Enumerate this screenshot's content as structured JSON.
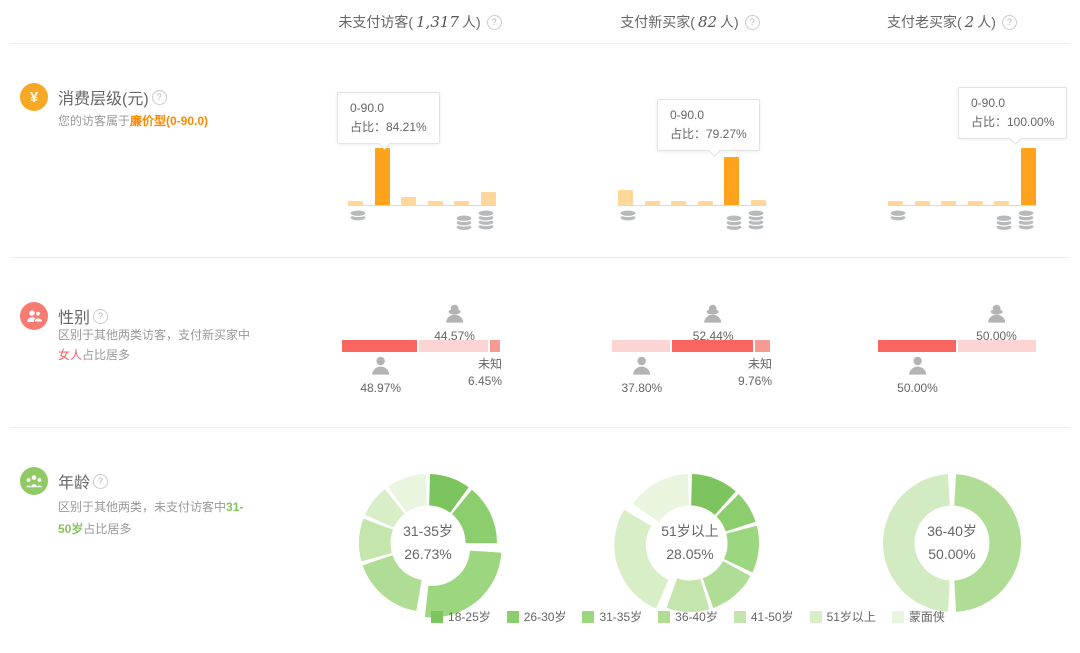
{
  "header": {
    "columns": [
      {
        "prefix": "未支付访客(",
        "count": "1,317",
        "suffix": "人)"
      },
      {
        "prefix": "支付新买家(",
        "count": "82",
        "suffix": "人)"
      },
      {
        "prefix": "支付老买家(",
        "count": "2",
        "suffix": "人)"
      }
    ]
  },
  "sections": {
    "consumption": {
      "title": "消费层级(元)",
      "desc_prefix": "您的访客属于",
      "desc_highlight": "廉价型(0-90.0)",
      "accent_color": "#ff8800",
      "icon_bg": "#f7a824"
    },
    "gender": {
      "title": "性别",
      "desc_line1": "区别于其他两类访客，支付新买家中",
      "desc_highlight": "女人",
      "desc_suffix": "占比居多",
      "accent_color": "#f7605c",
      "icon_bg": "#f87b72",
      "colors": {
        "dominant": "#fa655f",
        "secondary": "#fbd4d3",
        "unknown": "#f79a94"
      }
    },
    "age": {
      "title": "年龄",
      "desc_prefix": "区别于其他两类，未支付访客中",
      "desc_highlight_1": "31-",
      "desc_highlight_2": "50岁",
      "desc_suffix": "占比居多",
      "accent_color": "#85c35b",
      "icon_bg": "#90ca64"
    }
  },
  "legend": [
    {
      "label": "18-25岁",
      "color": "#7cc45e"
    },
    {
      "label": "26-30岁",
      "color": "#8cce6d"
    },
    {
      "label": "31-35岁",
      "color": "#9cd67f"
    },
    {
      "label": "36-40岁",
      "color": "#b0dd95"
    },
    {
      "label": "41-50岁",
      "color": "#c4e5ac"
    },
    {
      "label": "51岁以上",
      "color": "#d8eec6"
    },
    {
      "label": "蒙面侠",
      "color": "#e9f5de"
    }
  ],
  "chart_data": [
    {
      "type": "bar",
      "group": "消费层级(元)",
      "column": "未支付访客",
      "tooltip_line1": "0-90.0",
      "tooltip_line2": "占比：84.21%",
      "dominant_bucket": "0-90.0",
      "dominant_share_pct": 84.21,
      "highlight_index": 1,
      "values_rel": [
        0.07,
        1.0,
        0.14,
        0.07,
        0.07,
        0.23
      ],
      "highlight_color": "#ffa21c",
      "bar_color": "#ffd79b"
    },
    {
      "type": "bar",
      "group": "消费层级(元)",
      "column": "支付新买家",
      "tooltip_line1": "0-90.0",
      "tooltip_line2": "占比：79.27%",
      "dominant_bucket": "0-90.0",
      "dominant_share_pct": 79.27,
      "highlight_index": 4,
      "values_rel": [
        0.31,
        0.08,
        0.08,
        0.08,
        1.0,
        0.1
      ],
      "highlight_color": "#ffa21c",
      "bar_color": "#ffd79b"
    },
    {
      "type": "bar",
      "group": "消费层级(元)",
      "column": "支付老买家",
      "tooltip_line1": "0-90.0",
      "tooltip_line2": "占比：100.00%",
      "dominant_bucket": "0-90.0",
      "dominant_share_pct": 100.0,
      "highlight_index": 5,
      "values_rel": [
        0.07,
        0.07,
        0.07,
        0.07,
        0.07,
        1.0
      ],
      "highlight_color": "#ffa21c",
      "bar_color": "#ffd79b"
    },
    {
      "type": "stacked-bar",
      "group": "性别",
      "column": "未支付访客",
      "male_pct": 48.97,
      "female_pct": 44.57,
      "unknown_pct": 6.45,
      "male_label": "48.97%",
      "female_label": "44.57%",
      "unknown_title": "未知",
      "unknown_label": "6.45%",
      "dominant": "male"
    },
    {
      "type": "stacked-bar",
      "group": "性别",
      "column": "支付新买家",
      "male_pct": 37.8,
      "female_pct": 52.44,
      "unknown_pct": 9.76,
      "male_label": "37.80%",
      "female_label": "52.44%",
      "unknown_title": "未知",
      "unknown_label": "9.76%",
      "dominant": "female"
    },
    {
      "type": "stacked-bar",
      "group": "性别",
      "column": "支付老买家",
      "male_pct": 50.0,
      "female_pct": 50.0,
      "unknown_pct": 0,
      "male_label": "50.00%",
      "female_label": "50.00%",
      "unknown_title": "",
      "unknown_label": "",
      "dominant": "male"
    },
    {
      "type": "donut",
      "group": "年龄",
      "column": "未支付访客",
      "center_label": "31-35岁",
      "center_value": "26.73%",
      "exploded": "31-35岁",
      "slices": [
        {
          "label": "18-25岁",
          "value": 10.5,
          "color": "#7cc45e"
        },
        {
          "label": "26-30岁",
          "value": 15.0,
          "color": "#8cce6d"
        },
        {
          "label": "31-35岁",
          "value": 26.73,
          "color": "#9cd67f"
        },
        {
          "label": "36-40岁",
          "value": 18.0,
          "color": "#b0dd95"
        },
        {
          "label": "41-50岁",
          "value": 11.0,
          "color": "#c4e5ac"
        },
        {
          "label": "51岁以上",
          "value": 8.5,
          "color": "#d8eec6"
        },
        {
          "label": "蒙面侠",
          "value": 10.27,
          "color": "#e9f5de"
        }
      ]
    },
    {
      "type": "donut",
      "group": "年龄",
      "column": "支付新买家",
      "center_label": "51岁以上",
      "center_value": "28.05%",
      "exploded": "51岁以上",
      "slices": [
        {
          "label": "18-25岁",
          "value": 12.0,
          "color": "#7cc45e"
        },
        {
          "label": "26-30岁",
          "value": 8.5,
          "color": "#8cce6d"
        },
        {
          "label": "31-35岁",
          "value": 12.0,
          "color": "#9cd67f"
        },
        {
          "label": "36-40岁",
          "value": 12.5,
          "color": "#b0dd95"
        },
        {
          "label": "41-50岁",
          "value": 11.0,
          "color": "#c4e5ac"
        },
        {
          "label": "51岁以上",
          "value": 28.05,
          "color": "#d8eec6"
        },
        {
          "label": "蒙面侠",
          "value": 15.95,
          "color": "#e9f5de"
        }
      ]
    },
    {
      "type": "donut",
      "group": "年龄",
      "column": "支付老买家",
      "center_label": "36-40岁",
      "center_value": "50.00%",
      "exploded": null,
      "slices": [
        {
          "label": "36-40岁",
          "value": 50.0,
          "color": "#b0dd95"
        },
        {
          "label": "41-50岁",
          "value": 50.0,
          "color": "#d3ebc2"
        }
      ]
    }
  ]
}
